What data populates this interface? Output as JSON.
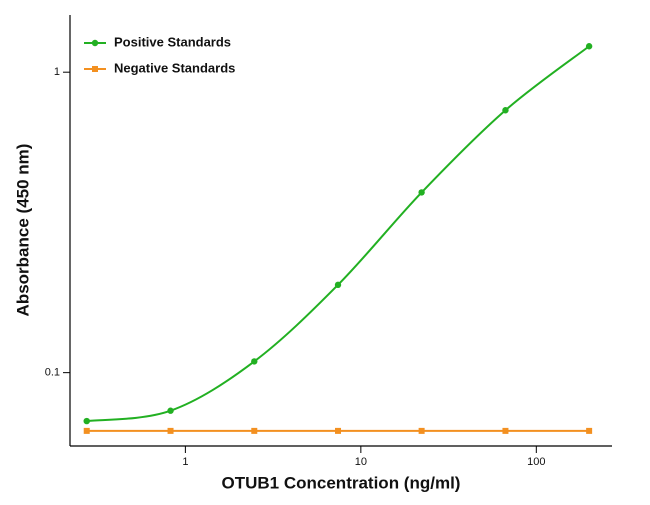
{
  "chart_data": {
    "type": "line",
    "xlabel": "OTUB1 Concentration (ng/ml)",
    "ylabel": "Absorbance (450 nm)",
    "xscale": "log",
    "yscale": "log",
    "xlim": [
      0.22,
      270
    ],
    "ylim": [
      0.057,
      1.55
    ],
    "xticks": [
      1,
      10,
      100
    ],
    "yticks": [
      0.1,
      1
    ],
    "grid": false,
    "legend": "upper left",
    "x": [
      0.274,
      0.823,
      2.47,
      7.41,
      22.2,
      66.7,
      200
    ],
    "series": [
      {
        "name": "Positive Standards",
        "color": "#22b022",
        "marker": "circle",
        "values": [
          0.069,
          0.0747,
          0.109,
          0.196,
          0.398,
          0.747,
          1.22
        ]
      },
      {
        "name": "Negative Standards",
        "color": "#f39020",
        "marker": "square",
        "values": [
          0.064,
          0.064,
          0.064,
          0.064,
          0.064,
          0.064,
          0.064
        ]
      }
    ]
  }
}
